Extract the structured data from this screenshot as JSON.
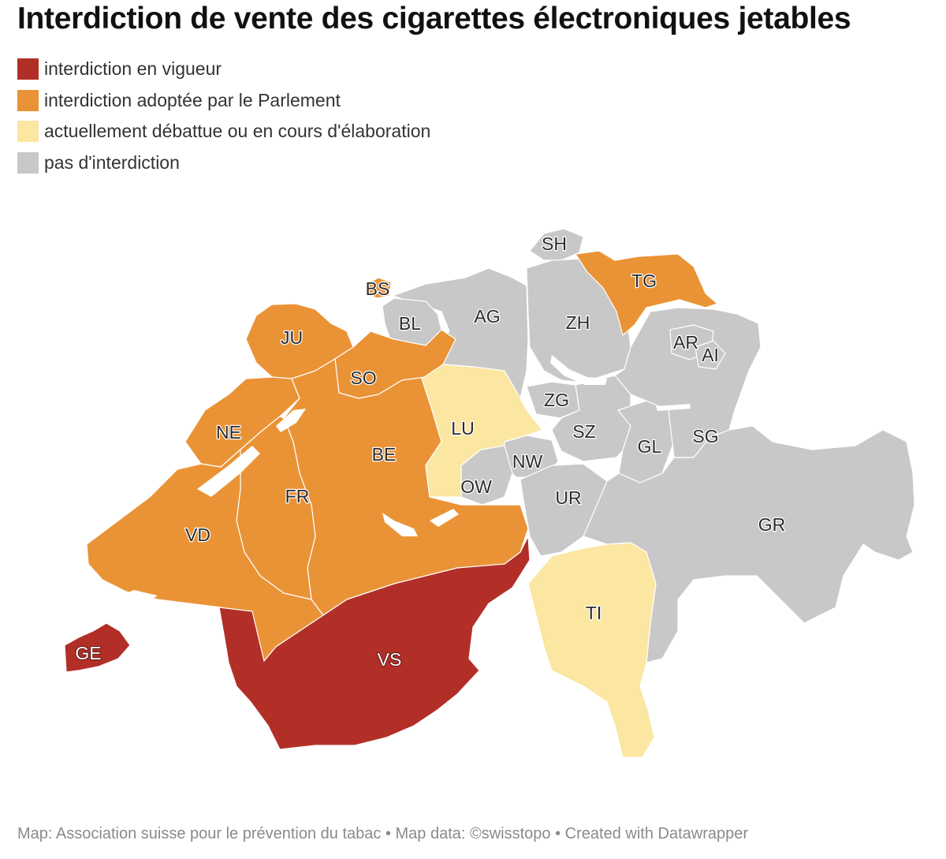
{
  "title": "Interdiction de vente des cigarettes électroniques jetables",
  "legend": [
    {
      "label": "interdiction en vigueur",
      "color": "#b22f28"
    },
    {
      "label": "interdiction adoptée par le Parlement",
      "color": "#ea9336"
    },
    {
      "label": "actuellement débattue ou en cours d'élaboration",
      "color": "#fbe6a2"
    },
    {
      "label": "pas d'interdiction",
      "color": "#c8c8c8"
    }
  ],
  "regions": [
    {
      "code": "GE",
      "status": 0
    },
    {
      "code": "VS",
      "status": 0
    },
    {
      "code": "VD",
      "status": 1
    },
    {
      "code": "NE",
      "status": 1
    },
    {
      "code": "JU",
      "status": 1
    },
    {
      "code": "FR",
      "status": 1
    },
    {
      "code": "BE",
      "status": 1
    },
    {
      "code": "SO",
      "status": 1
    },
    {
      "code": "BS",
      "status": 1
    },
    {
      "code": "TG",
      "status": 1
    },
    {
      "code": "LU",
      "status": 2
    },
    {
      "code": "TI",
      "status": 2
    },
    {
      "code": "BL",
      "status": 3
    },
    {
      "code": "AG",
      "status": 3
    },
    {
      "code": "SH",
      "status": 3
    },
    {
      "code": "ZH",
      "status": 3
    },
    {
      "code": "ZG",
      "status": 3
    },
    {
      "code": "SZ",
      "status": 3
    },
    {
      "code": "NW",
      "status": 3
    },
    {
      "code": "OW",
      "status": 3
    },
    {
      "code": "UR",
      "status": 3
    },
    {
      "code": "GL",
      "status": 3
    },
    {
      "code": "SG",
      "status": 3
    },
    {
      "code": "AR",
      "status": 3
    },
    {
      "code": "AI",
      "status": 3
    },
    {
      "code": "GR",
      "status": 3
    }
  ],
  "footer": "Map: Association suisse pour le prévention du tabac • Map data: ©swisstopo • Created with Datawrapper"
}
